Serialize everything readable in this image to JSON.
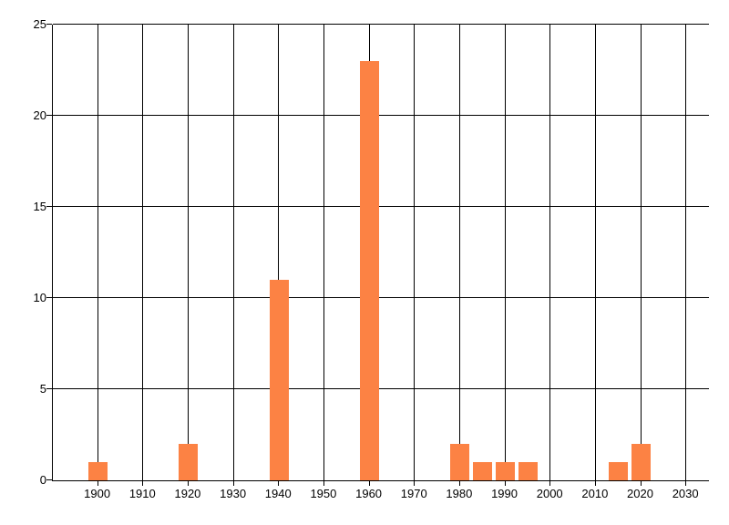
{
  "chart_data": {
    "type": "bar",
    "title": "",
    "xlabel": "",
    "ylabel": "",
    "grid": "on",
    "legend": "none",
    "xlim": [
      1890,
      2035
    ],
    "ylim": [
      0,
      25
    ],
    "x_tick_labels": [
      "1900",
      "1910",
      "1920",
      "1930",
      "1940",
      "1950",
      "1960",
      "1970",
      "1980",
      "1990",
      "2000",
      "2010",
      "2020",
      "2030"
    ],
    "x_tick_values": [
      1900,
      1910,
      1920,
      1930,
      1940,
      1950,
      1960,
      1970,
      1980,
      1990,
      2000,
      2010,
      2020,
      2030
    ],
    "y_tick_labels": [
      "0",
      "5",
      "10",
      "15",
      "20",
      "25"
    ],
    "y_tick_values": [
      0,
      5,
      10,
      15,
      20,
      25
    ],
    "bars": [
      {
        "x": 1900,
        "value": 1
      },
      {
        "x": 1920,
        "value": 2
      },
      {
        "x": 1940,
        "value": 11
      },
      {
        "x": 1960,
        "value": 23
      },
      {
        "x": 1980,
        "value": 2
      },
      {
        "x": 1985,
        "value": 1
      },
      {
        "x": 1990,
        "value": 1
      },
      {
        "x": 1995,
        "value": 1
      },
      {
        "x": 2015,
        "value": 1
      },
      {
        "x": 2020,
        "value": 2
      }
    ],
    "colors": {
      "bar": "#FC8244",
      "grid": "#000000",
      "axis": "#000000",
      "background": "#FFFFFF",
      "text": "#000000"
    }
  }
}
